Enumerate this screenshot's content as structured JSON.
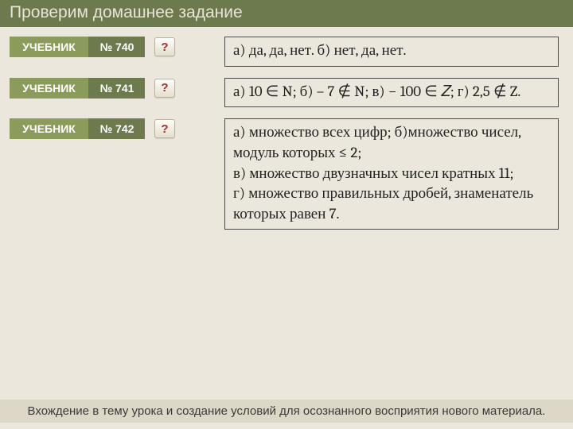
{
  "colors": {
    "page_bg": "#ece7dc",
    "titlebar_bg": "#6c7a4d",
    "titlebar_text": "#e8e4d8",
    "tag_textbook_bg": "#8a9b5c",
    "tag_number_bg": "#6c7a4d",
    "tag_text": "#ffffff",
    "q_btn_text": "#a03030",
    "answer_border": "#4a4a4a",
    "footer_bg": "#dcd7c7"
  },
  "title": "Проверим домашнее задание",
  "textbook_label": "УЧЕБНИК",
  "q_label": "?",
  "rows": [
    {
      "number": "№ 740",
      "answer": "а) да, да, нет. б) нет, да, нет."
    },
    {
      "number": "№ 741",
      "answer": "а) 10 ∈ N; б) – 7 ∉ N; в)  − 100 ∈ 𝑍; г) 2,5 ∉ Z."
    },
    {
      "number": "№ 742",
      "answer": "а) множество всех цифр; б)множество чисел, модуль которых ≤ 2;\nв) множество двузначных чисел кратных 11;\nг) множество правильных дробей, знаменатель которых равен 7."
    }
  ],
  "footer": "Вхождение в тему урока и создание условий для осознанного восприятия нового материала."
}
